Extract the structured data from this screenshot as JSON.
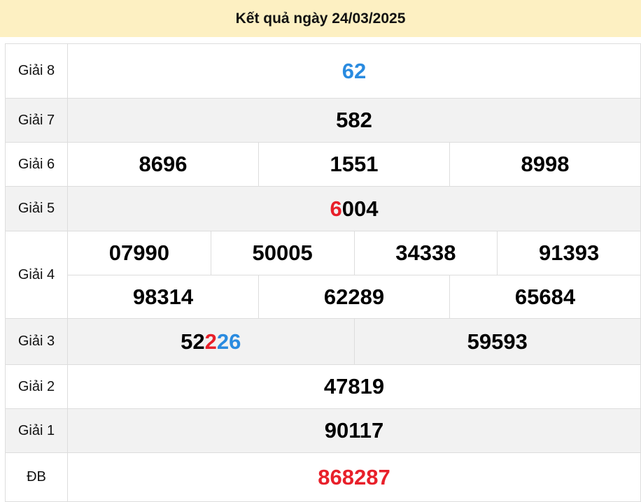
{
  "header": {
    "title": "Kết quả ngày 24/03/2025"
  },
  "colors": {
    "red": "#e8202a",
    "blue": "#2a8be0",
    "black": "#000000",
    "header_bg": "#fdf0c2",
    "row_alt_bg": "#f2f2f2"
  },
  "prizes": {
    "g8": {
      "label": "Giải 8",
      "numbers": [
        [
          {
            "t": "62",
            "c": "blue"
          }
        ]
      ]
    },
    "g7": {
      "label": "Giải 7",
      "numbers": [
        [
          {
            "t": "582",
            "c": "black"
          }
        ]
      ]
    },
    "g6": {
      "label": "Giải 6",
      "numbers": [
        [
          {
            "t": "8696",
            "c": "black"
          }
        ],
        [
          {
            "t": "1551",
            "c": "black"
          }
        ],
        [
          {
            "t": "8998",
            "c": "black"
          }
        ]
      ]
    },
    "g5": {
      "label": "Giải 5",
      "numbers": [
        [
          {
            "t": "6",
            "c": "red"
          },
          {
            "t": "004",
            "c": "black"
          }
        ]
      ]
    },
    "g4": {
      "label": "Giải 4",
      "numbers": [
        [
          {
            "t": "07990",
            "c": "black"
          }
        ],
        [
          {
            "t": "50005",
            "c": "black"
          }
        ],
        [
          {
            "t": "34338",
            "c": "black"
          }
        ],
        [
          {
            "t": "91393",
            "c": "black"
          }
        ],
        [
          {
            "t": "98314",
            "c": "black"
          }
        ],
        [
          {
            "t": "62289",
            "c": "black"
          }
        ],
        [
          {
            "t": "65684",
            "c": "black"
          }
        ]
      ]
    },
    "g3": {
      "label": "Giải 3",
      "numbers": [
        [
          {
            "t": "52",
            "c": "black"
          },
          {
            "t": "2",
            "c": "red"
          },
          {
            "t": "26",
            "c": "blue"
          }
        ],
        [
          {
            "t": "59593",
            "c": "black"
          }
        ]
      ]
    },
    "g2": {
      "label": "Giải 2",
      "numbers": [
        [
          {
            "t": "47819",
            "c": "black"
          }
        ]
      ]
    },
    "g1": {
      "label": "Giải 1",
      "numbers": [
        [
          {
            "t": "90117",
            "c": "black"
          }
        ]
      ]
    },
    "db": {
      "label": "ĐB",
      "numbers": [
        [
          {
            "t": "868287",
            "c": "red"
          }
        ]
      ]
    }
  }
}
